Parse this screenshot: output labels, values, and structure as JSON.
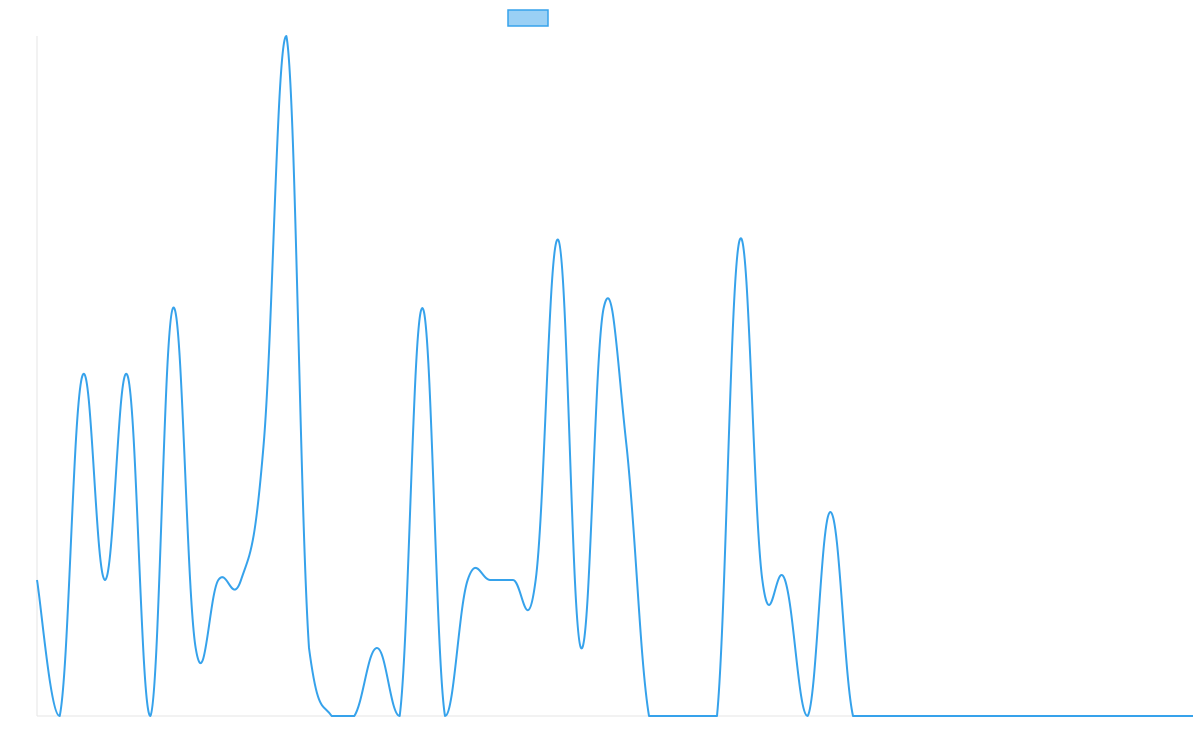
{
  "chart_data": {
    "type": "line",
    "title": "",
    "xlabel": "",
    "ylabel": "",
    "legend": {
      "placement": "top-center",
      "label": ""
    },
    "grid": false,
    "ylim": [
      0,
      10
    ],
    "x": [
      0,
      1,
      2,
      3,
      4,
      5,
      6,
      7,
      8,
      9,
      10,
      11,
      12,
      13,
      14,
      15,
      16,
      17,
      18,
      19,
      20,
      21,
      22,
      23,
      24,
      25,
      26,
      27,
      28,
      29,
      30,
      31,
      32,
      33,
      34,
      35,
      36,
      37,
      38,
      39,
      40,
      41,
      42,
      43,
      44,
      45,
      46,
      47,
      48,
      49,
      50,
      51
    ],
    "series": [
      {
        "name": "",
        "color": "#36a2eb",
        "fill": "#9ad0f5",
        "values": [
          2,
          0,
          5,
          2,
          5,
          0,
          6,
          1,
          2,
          2,
          4,
          10,
          1,
          0,
          0,
          1,
          0,
          6,
          0,
          2,
          2,
          2,
          2,
          7,
          1,
          6,
          4,
          0,
          0,
          0,
          0,
          7,
          2,
          2,
          0,
          3,
          0,
          0,
          0,
          0,
          0,
          0,
          0,
          0,
          0,
          0,
          0,
          0,
          0,
          0,
          0,
          0
        ]
      }
    ]
  }
}
